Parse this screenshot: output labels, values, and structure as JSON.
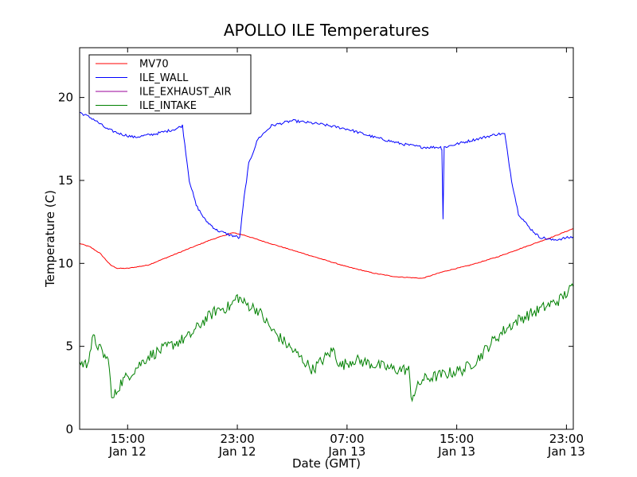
{
  "chart_data": {
    "type": "line",
    "title": "APOLLO ILE Temperatures",
    "xlabel": "Date (GMT)",
    "ylabel": "Temperature (C)",
    "ylim": [
      0,
      23
    ],
    "xlim": [
      "2012-01-12 11:30",
      "2012-01-13 23:30"
    ],
    "grid": false,
    "legend_position": "top-left",
    "y_ticks": [
      0,
      5,
      10,
      15,
      20
    ],
    "x_ticks": [
      {
        "at": "2012-01-12 15:00",
        "time": "15:00",
        "date": "Jan 12"
      },
      {
        "at": "2012-01-12 23:00",
        "time": "23:00",
        "date": "Jan 12"
      },
      {
        "at": "2012-01-13 07:00",
        "time": "07:00",
        "date": "Jan 13"
      },
      {
        "at": "2012-01-13 15:00",
        "time": "15:00",
        "date": "Jan 13"
      },
      {
        "at": "2012-01-13 23:00",
        "time": "23:00",
        "date": "Jan 13"
      }
    ],
    "series": [
      {
        "name": "MV70",
        "color": "#ff0000",
        "noise": 0.02,
        "points": [
          [
            "2012-01-12 11:30",
            11.2
          ],
          [
            "2012-01-12 12:15",
            11.0
          ],
          [
            "2012-01-12 13:00",
            10.6
          ],
          [
            "2012-01-12 13:45",
            9.9
          ],
          [
            "2012-01-12 14:15",
            9.7
          ],
          [
            "2012-01-12 15:00",
            9.7
          ],
          [
            "2012-01-12 16:30",
            9.9
          ],
          [
            "2012-01-12 18:00",
            10.4
          ],
          [
            "2012-01-12 19:30",
            10.9
          ],
          [
            "2012-01-12 21:00",
            11.4
          ],
          [
            "2012-01-12 22:40",
            11.85
          ],
          [
            "2012-01-12 23:30",
            11.7
          ],
          [
            "2012-01-13 01:00",
            11.3
          ],
          [
            "2012-01-13 03:00",
            10.8
          ],
          [
            "2012-01-13 05:00",
            10.3
          ],
          [
            "2012-01-13 07:00",
            9.8
          ],
          [
            "2012-01-13 09:00",
            9.4
          ],
          [
            "2012-01-13 10:30",
            9.2
          ],
          [
            "2012-01-13 12:30",
            9.1
          ],
          [
            "2012-01-13 14:00",
            9.5
          ],
          [
            "2012-01-13 16:00",
            9.9
          ],
          [
            "2012-01-13 18:00",
            10.4
          ],
          [
            "2012-01-13 20:00",
            11.0
          ],
          [
            "2012-01-13 22:00",
            11.6
          ],
          [
            "2012-01-13 23:30",
            12.1
          ]
        ]
      },
      {
        "name": "ILE_WALL",
        "color": "#0000ff",
        "noise": 0.08,
        "points": [
          [
            "2012-01-12 11:30",
            19.1
          ],
          [
            "2012-01-12 12:30",
            18.7
          ],
          [
            "2012-01-12 13:30",
            18.1
          ],
          [
            "2012-01-12 14:30",
            17.8
          ],
          [
            "2012-01-12 15:30",
            17.6
          ],
          [
            "2012-01-12 17:00",
            17.8
          ],
          [
            "2012-01-12 18:30",
            18.1
          ],
          [
            "2012-01-12 19:00",
            18.3
          ],
          [
            "2012-01-12 19:30",
            15.0
          ],
          [
            "2012-01-12 20:00",
            13.5
          ],
          [
            "2012-01-12 20:40",
            12.6
          ],
          [
            "2012-01-12 21:30",
            12.0
          ],
          [
            "2012-01-12 22:30",
            11.7
          ],
          [
            "2012-01-12 23:00",
            11.6
          ],
          [
            "2012-01-12 23:10",
            11.5
          ],
          [
            "2012-01-12 23:30",
            14.0
          ],
          [
            "2012-01-12 23:50",
            16.0
          ],
          [
            "2012-01-13 00:30",
            17.5
          ],
          [
            "2012-01-13 01:30",
            18.3
          ],
          [
            "2012-01-13 03:00",
            18.6
          ],
          [
            "2012-01-13 05:00",
            18.4
          ],
          [
            "2012-01-13 07:00",
            18.1
          ],
          [
            "2012-01-13 09:00",
            17.6
          ],
          [
            "2012-01-13 11:00",
            17.2
          ],
          [
            "2012-01-13 12:30",
            17.0
          ],
          [
            "2012-01-13 13:50",
            17.0
          ],
          [
            "2012-01-13 13:55",
            16.9
          ],
          [
            "2012-01-13 14:00",
            12.7
          ],
          [
            "2012-01-13 14:05",
            17.0
          ],
          [
            "2012-01-13 15:30",
            17.3
          ],
          [
            "2012-01-13 17:00",
            17.6
          ],
          [
            "2012-01-13 18:00",
            17.8
          ],
          [
            "2012-01-13 18:30",
            17.8
          ],
          [
            "2012-01-13 19:00",
            15.0
          ],
          [
            "2012-01-13 19:30",
            13.0
          ],
          [
            "2012-01-13 20:15",
            12.2
          ],
          [
            "2012-01-13 21:00",
            11.6
          ],
          [
            "2012-01-13 22:00",
            11.4
          ],
          [
            "2012-01-13 23:30",
            11.6
          ]
        ]
      },
      {
        "name": "ILE_EXHAUST_AIR",
        "color": "#990099",
        "noise": 0,
        "points": []
      },
      {
        "name": "ILE_INTAKE",
        "color": "#008000",
        "noise": 0.35,
        "points": [
          [
            "2012-01-12 11:30",
            4.0
          ],
          [
            "2012-01-12 12:00",
            3.9
          ],
          [
            "2012-01-12 12:30",
            5.5
          ],
          [
            "2012-01-12 13:00",
            4.8
          ],
          [
            "2012-01-12 13:40",
            4.0
          ],
          [
            "2012-01-12 13:50",
            1.7
          ],
          [
            "2012-01-12 14:30",
            2.8
          ],
          [
            "2012-01-12 15:30",
            3.6
          ],
          [
            "2012-01-12 16:30",
            4.4
          ],
          [
            "2012-01-12 17:30",
            4.8
          ],
          [
            "2012-01-12 18:30",
            5.2
          ],
          [
            "2012-01-12 19:30",
            5.6
          ],
          [
            "2012-01-12 20:30",
            6.5
          ],
          [
            "2012-01-12 21:30",
            7.2
          ],
          [
            "2012-01-12 22:30",
            7.4
          ],
          [
            "2012-01-12 23:00",
            8.0
          ],
          [
            "2012-01-12 23:30",
            7.6
          ],
          [
            "2012-01-13 00:30",
            7.2
          ],
          [
            "2012-01-13 01:30",
            6.0
          ],
          [
            "2012-01-13 02:30",
            5.2
          ],
          [
            "2012-01-13 03:30",
            4.4
          ],
          [
            "2012-01-13 04:30",
            3.6
          ],
          [
            "2012-01-13 05:30",
            4.4
          ],
          [
            "2012-01-13 06:00",
            4.8
          ],
          [
            "2012-01-13 06:30",
            3.8
          ],
          [
            "2012-01-13 07:30",
            4.2
          ],
          [
            "2012-01-13 08:30",
            4.0
          ],
          [
            "2012-01-13 09:30",
            3.8
          ],
          [
            "2012-01-13 10:30",
            3.6
          ],
          [
            "2012-01-13 11:30",
            3.6
          ],
          [
            "2012-01-13 11:40",
            1.9
          ],
          [
            "2012-01-13 12:30",
            3.0
          ],
          [
            "2012-01-13 13:30",
            3.2
          ],
          [
            "2012-01-13 14:30",
            3.4
          ],
          [
            "2012-01-13 15:30",
            3.6
          ],
          [
            "2012-01-13 16:30",
            4.2
          ],
          [
            "2012-01-13 17:30",
            5.2
          ],
          [
            "2012-01-13 18:30",
            6.0
          ],
          [
            "2012-01-13 19:30",
            6.6
          ],
          [
            "2012-01-13 20:30",
            7.0
          ],
          [
            "2012-01-13 21:30",
            7.4
          ],
          [
            "2012-01-13 22:30",
            7.8
          ],
          [
            "2012-01-13 23:30",
            8.6
          ]
        ]
      }
    ]
  }
}
